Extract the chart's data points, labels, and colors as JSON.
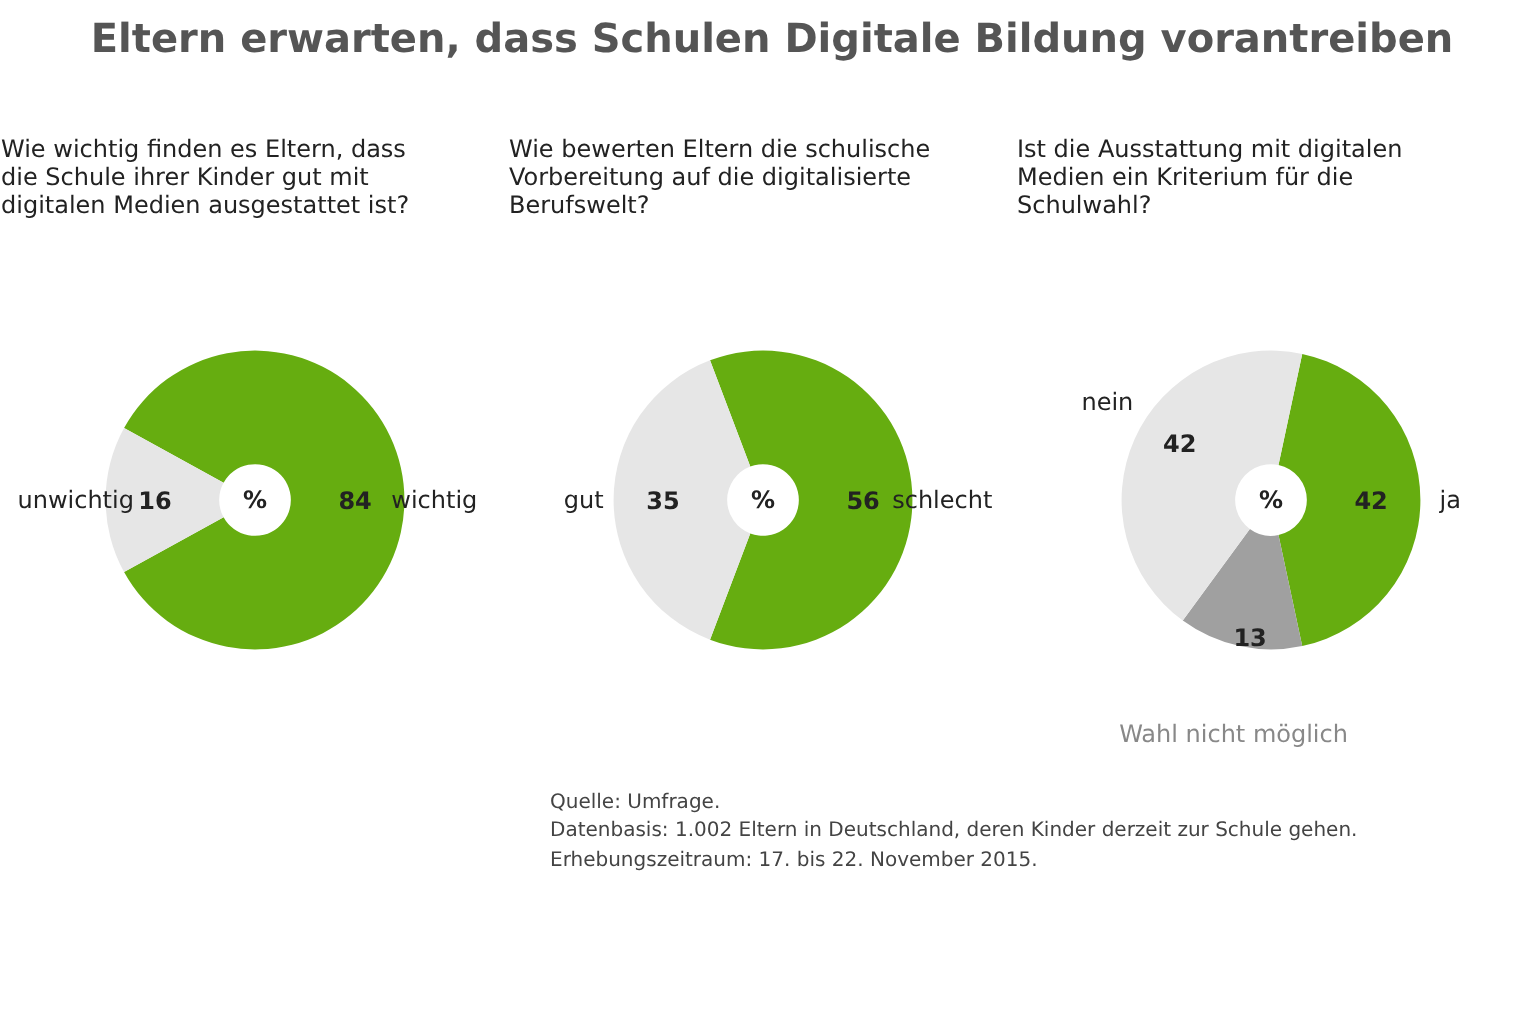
{
  "chart_data": [
    {
      "type": "donut",
      "title": "Wie wichtig finden es Eltern, dass die Schule ihrer Kinder gut mit digitalen Medien ausgestattet ist?",
      "categories": [
        "wichtig",
        "unwichtig"
      ],
      "values": [
        84,
        16
      ],
      "colors": [
        "#66ad10",
        "#e6e6e6"
      ],
      "data_labels": true,
      "annotations": [
        "%",
        "Eltern erwarten, dass Schulen Digitale Bildung vorantreiben"
      ]
    },
    {
      "type": "donut",
      "title": "Wie bewerten Eltern die schulische Vorbereitung auf die digitalisierte Berufswelt?",
      "categories": [
        "schlecht",
        "gut"
      ],
      "values": [
        56,
        35
      ],
      "colors": [
        "#66ad10",
        "#e6e6e6"
      ],
      "data_labels": true,
      "annotations": [
        "%"
      ]
    },
    {
      "type": "donut",
      "title": "Ist die Ausstattung mit digitalen Medien ein Kriterium für die Schulwahl?",
      "categories": [
        "ja",
        "Wahl nicht möglich",
        "nein"
      ],
      "values": [
        42,
        13,
        42
      ],
      "colors": [
        "#66ad10",
        "#a0a0a0",
        "#e6e6e6"
      ],
      "data_labels": true,
      "annotations": [
        "%",
        "Quelle: Umfrage.",
        "Datenbasis: 1.002 Eltern in Deutschland, deren Kinder derzeit zur Schule gehen.",
        "Erhebungszeitraum: 17. bis 22. November 2015."
      ]
    }
  ]
}
